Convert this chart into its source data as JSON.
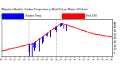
{
  "bg_color": "#ffffff",
  "temp_color": "#ff0000",
  "wind_chill_color": "#0000ff",
  "n_points": 1440,
  "ylim": [
    0,
    50
  ],
  "yticks": [
    5,
    10,
    15,
    20,
    25,
    30,
    35,
    40,
    45
  ],
  "vline_positions": [
    360,
    720
  ],
  "vline_color": "#888888",
  "legend_blue_label": "Outdoor Temp",
  "legend_red_label": "Wind Chill"
}
